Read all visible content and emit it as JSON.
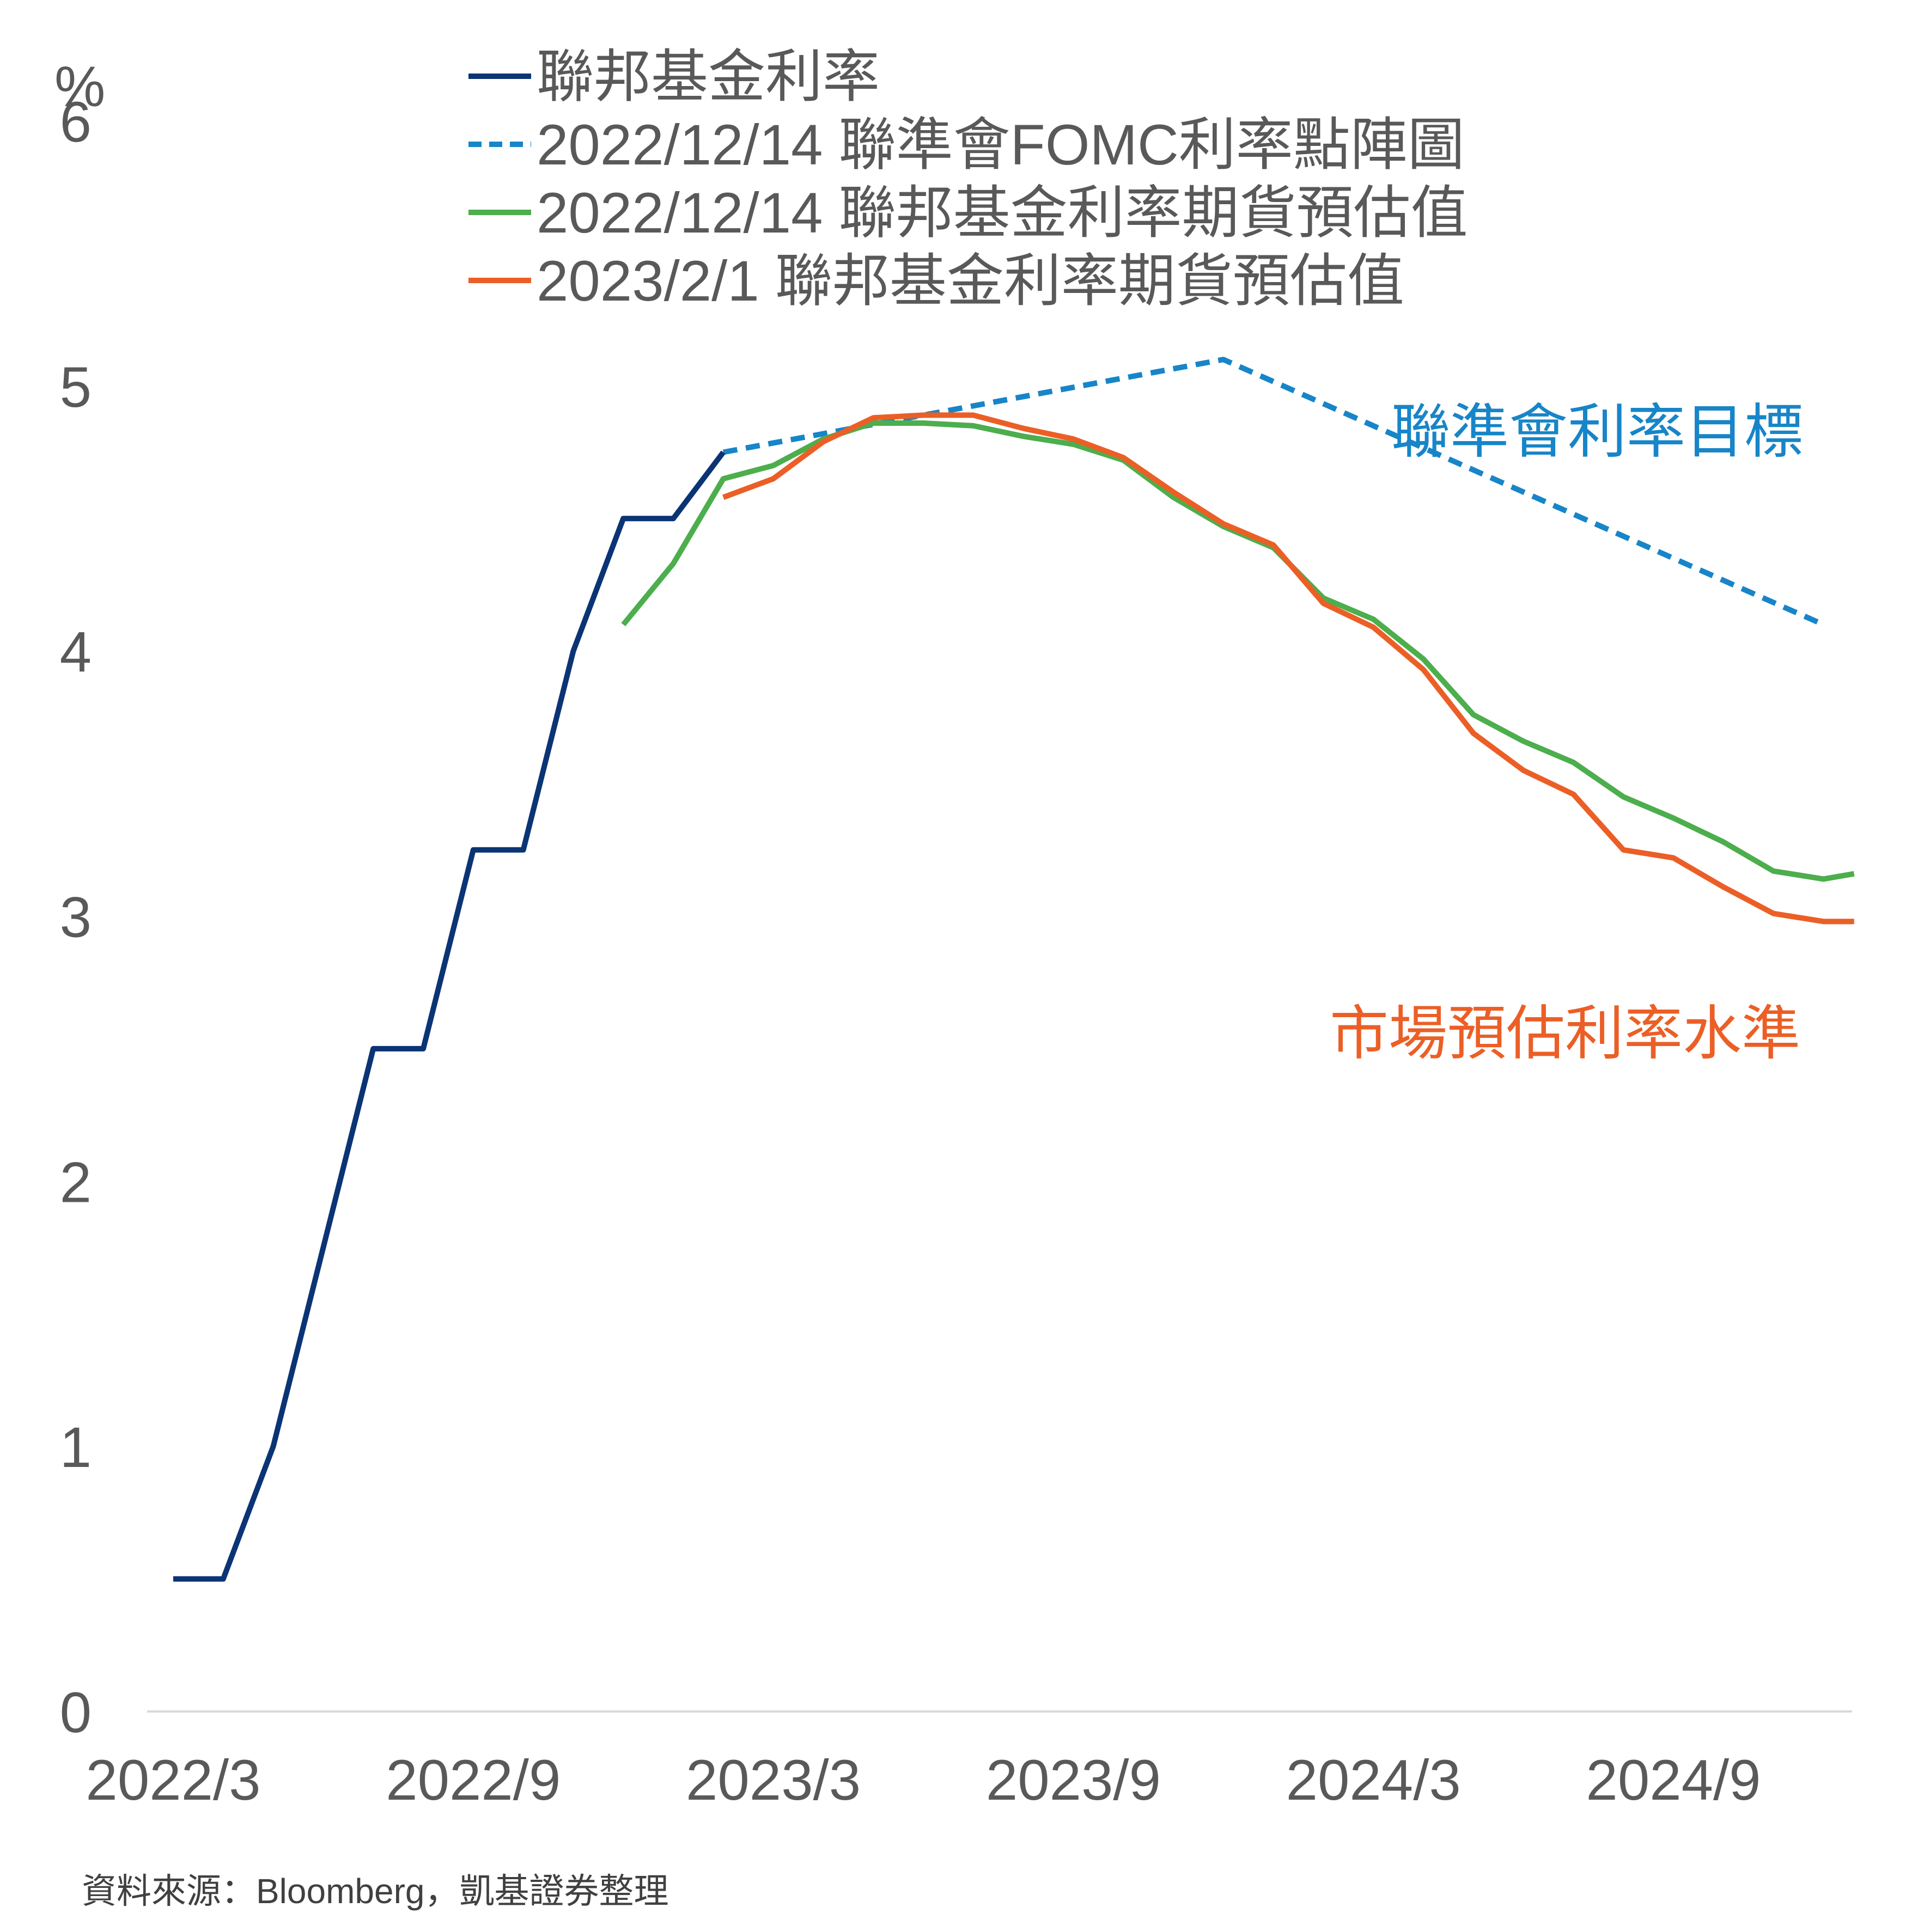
{
  "chart_data": {
    "type": "line",
    "y_unit": "%",
    "ylim": [
      0,
      6
    ],
    "y_ticks": [
      0,
      1,
      2,
      3,
      4,
      5,
      6
    ],
    "x_ticks": [
      "2022/3",
      "2022/9",
      "2023/3",
      "2023/9",
      "2024/3",
      "2024/9"
    ],
    "grid": false,
    "legend_position": "top",
    "series": [
      {
        "name": "聯邦基金利率",
        "color": "#0b3475",
        "dash": "solid",
        "points": [
          [
            "2022-03",
            0.5
          ],
          [
            "2022-04",
            0.5
          ],
          [
            "2022-05",
            1.0
          ],
          [
            "2022-06",
            1.75
          ],
          [
            "2022-07",
            2.5
          ],
          [
            "2022-08",
            2.5
          ],
          [
            "2022-09",
            3.25
          ],
          [
            "2022-10",
            3.25
          ],
          [
            "2022-11",
            4.0
          ],
          [
            "2022-12",
            4.5
          ],
          [
            "2023-01",
            4.5
          ],
          [
            "2023-02",
            4.75
          ]
        ]
      },
      {
        "name": "2022/12/14 聯準會FOMC利率點陣圖",
        "color": "#1785c8",
        "dash": "dashed",
        "points": [
          [
            "2023-02",
            4.75
          ],
          [
            "2023-12",
            5.1
          ],
          [
            "2024-12",
            4.1
          ]
        ]
      },
      {
        "name": "2022/12/14 聯邦基金利率期貨預估值",
        "color": "#4cae4c",
        "dash": "solid",
        "points": [
          [
            "2022-12",
            4.1
          ],
          [
            "2023-01",
            4.33
          ],
          [
            "2023-02",
            4.65
          ],
          [
            "2023-03",
            4.7
          ],
          [
            "2023-04",
            4.8
          ],
          [
            "2023-05",
            4.86
          ],
          [
            "2023-06",
            4.86
          ],
          [
            "2023-07",
            4.85
          ],
          [
            "2023-08",
            4.81
          ],
          [
            "2023-09",
            4.78
          ],
          [
            "2023-10",
            4.72
          ],
          [
            "2023-11",
            4.58
          ],
          [
            "2023-12",
            4.47
          ],
          [
            "2024-01",
            4.39
          ],
          [
            "2024-02",
            4.2
          ],
          [
            "2024-03",
            4.12
          ],
          [
            "2024-04",
            3.97
          ],
          [
            "2024-05",
            3.76
          ],
          [
            "2024-06",
            3.66
          ],
          [
            "2024-07",
            3.58
          ],
          [
            "2024-08",
            3.45
          ],
          [
            "2024-09",
            3.37
          ],
          [
            "2024-10",
            3.28
          ],
          [
            "2024-11",
            3.17
          ],
          [
            "2024-12",
            3.14
          ],
          [
            "2024-12-20",
            3.16
          ]
        ]
      },
      {
        "name": "2023/2/1 聯邦基金利率期貨預估值",
        "color": "#eb5f27",
        "dash": "solid",
        "points": [
          [
            "2023-02",
            4.58
          ],
          [
            "2023-03",
            4.65
          ],
          [
            "2023-04",
            4.79
          ],
          [
            "2023-05",
            4.88
          ],
          [
            "2023-06",
            4.89
          ],
          [
            "2023-07",
            4.89
          ],
          [
            "2023-08",
            4.84
          ],
          [
            "2023-09",
            4.8
          ],
          [
            "2023-10",
            4.73
          ],
          [
            "2023-11",
            4.6
          ],
          [
            "2023-12",
            4.48
          ],
          [
            "2024-01",
            4.4
          ],
          [
            "2024-02",
            4.18
          ],
          [
            "2024-03",
            4.09
          ],
          [
            "2024-04",
            3.93
          ],
          [
            "2024-05",
            3.69
          ],
          [
            "2024-06",
            3.55
          ],
          [
            "2024-07",
            3.46
          ],
          [
            "2024-08",
            3.25
          ],
          [
            "2024-09",
            3.22
          ],
          [
            "2024-10",
            3.11
          ],
          [
            "2024-11",
            3.01
          ],
          [
            "2024-12",
            2.98
          ],
          [
            "2024-12-20",
            2.98
          ]
        ]
      }
    ],
    "annotations": [
      {
        "text": "聯準會利率目標",
        "color": "#1785c8"
      },
      {
        "text": "市場預估利率水準",
        "color": "#eb5f27"
      }
    ],
    "source": "資料來源：Bloomberg，凱基證券整理"
  }
}
